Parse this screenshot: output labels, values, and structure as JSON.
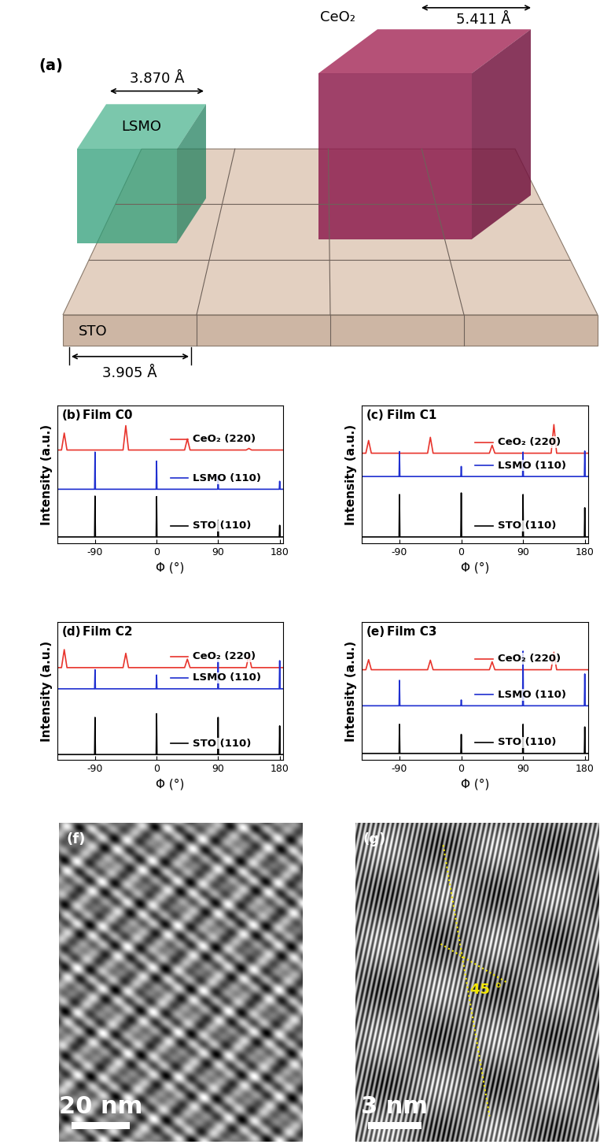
{
  "panel_a": {
    "label": "(a)",
    "substrate": {
      "name": "STO",
      "lattice": "3.905 Å"
    },
    "films": [
      {
        "name": "LSMO",
        "lattice": "3.870 Å"
      },
      {
        "name": "CeO₂",
        "lattice": "5.411 Å"
      }
    ]
  },
  "chart_data": [
    {
      "type": "line",
      "panel": "(b)",
      "title": "Film C0",
      "x_label": "Φ (°)",
      "y_label": "Intensity (a.u.)",
      "xlim": [
        -145,
        185
      ],
      "xticks": [
        -90,
        0,
        90,
        180
      ],
      "ylim": [
        0,
        130
      ],
      "tick_labels": "x",
      "series": [
        {
          "name": "CeO₂ (220)",
          "color": "#e8342c",
          "type": "profile",
          "baseline": 88,
          "x": [
            -135,
            -45,
            45,
            135
          ],
          "values": [
            104,
            111,
            98.5,
            89.5
          ]
        },
        {
          "name": "LSMO (110)",
          "color": "#1f2fd0",
          "type": "stick",
          "baseline": 51,
          "x": [
            -90,
            0,
            90,
            180
          ],
          "values": [
            86,
            77.5,
            63.5,
            58.5
          ]
        },
        {
          "name": "STO (110)",
          "color": "#000000",
          "type": "stick",
          "baseline": 6,
          "x": [
            -90,
            0,
            90,
            180
          ],
          "values": [
            44.5,
            44,
            21.5,
            17
          ]
        }
      ]
    },
    {
      "type": "line",
      "panel": "(c)",
      "title": "Film C1",
      "x_label": "Φ (°)",
      "y_label": "Intensity (a.u.)",
      "xlim": [
        -145,
        185
      ],
      "xticks": [
        -90,
        0,
        90,
        180
      ],
      "ylim": [
        0,
        130
      ],
      "tick_labels": "x",
      "series": [
        {
          "name": "CeO₂ (220)",
          "color": "#e8342c",
          "type": "profile",
          "baseline": 85,
          "x": [
            -135,
            -45,
            45,
            135
          ],
          "values": [
            97,
            100,
            92.5,
            112
          ]
        },
        {
          "name": "LSMO (110)",
          "color": "#1f2fd0",
          "type": "stick",
          "baseline": 63,
          "x": [
            -90,
            0,
            90,
            180
          ],
          "values": [
            86.5,
            72.5,
            86,
            87
          ]
        },
        {
          "name": "STO (110)",
          "color": "#000000",
          "type": "stick",
          "baseline": 6,
          "x": [
            -90,
            0,
            90,
            180
          ],
          "values": [
            46,
            47.5,
            46,
            33.5
          ]
        }
      ]
    },
    {
      "type": "line",
      "panel": "(d)",
      "title": "Film C2",
      "x_label": "Φ (°)",
      "y_label": "Intensity (a.u.)",
      "xlim": [
        -145,
        185
      ],
      "xticks": [
        -90,
        0,
        90,
        180
      ],
      "ylim": [
        0,
        130
      ],
      "tick_labels": "x",
      "series": [
        {
          "name": "CeO₂ (220)",
          "color": "#e8342c",
          "type": "profile",
          "baseline": 87,
          "x": [
            -135,
            -45,
            45,
            135
          ],
          "values": [
            104,
            100.5,
            95,
            99
          ]
        },
        {
          "name": "LSMO (110)",
          "color": "#1f2fd0",
          "type": "stick",
          "baseline": 67,
          "x": [
            -90,
            0,
            90,
            180
          ],
          "values": [
            85,
            80,
            93.5,
            93.5
          ]
        },
        {
          "name": "STO (110)",
          "color": "#000000",
          "type": "stick",
          "baseline": 5,
          "x": [
            -90,
            0,
            90,
            180
          ],
          "values": [
            40,
            43.5,
            40,
            32
          ]
        }
      ]
    },
    {
      "type": "line",
      "panel": "(e)",
      "title": "Film C3",
      "x_label": "Φ (°)",
      "y_label": "Intensity (a.u.)",
      "xlim": [
        -145,
        185
      ],
      "xticks": [
        -90,
        0,
        90,
        180
      ],
      "ylim": [
        0,
        130
      ],
      "tick_labels": "x",
      "series": [
        {
          "name": "CeO₂ (220)",
          "color": "#e8342c",
          "type": "profile",
          "baseline": 85,
          "x": [
            -135,
            -45,
            45,
            135
          ],
          "values": [
            94.5,
            94,
            92.5,
            101.5
          ]
        },
        {
          "name": "LSMO (110)",
          "color": "#1f2fd0",
          "type": "stick",
          "baseline": 51,
          "x": [
            -90,
            0,
            90,
            180
          ],
          "values": [
            75,
            56.5,
            102.5,
            81
          ]
        },
        {
          "name": "STO (110)",
          "color": "#000000",
          "type": "stick",
          "baseline": 6,
          "x": [
            -90,
            0,
            90,
            180
          ],
          "values": [
            33.5,
            24,
            33.5,
            31
          ]
        }
      ]
    }
  ],
  "images": [
    {
      "label": "(f)",
      "scale_bar": "20 nm"
    },
    {
      "label": "(g)",
      "scale_bar": "3 nm",
      "angle_label": "45 °"
    }
  ]
}
